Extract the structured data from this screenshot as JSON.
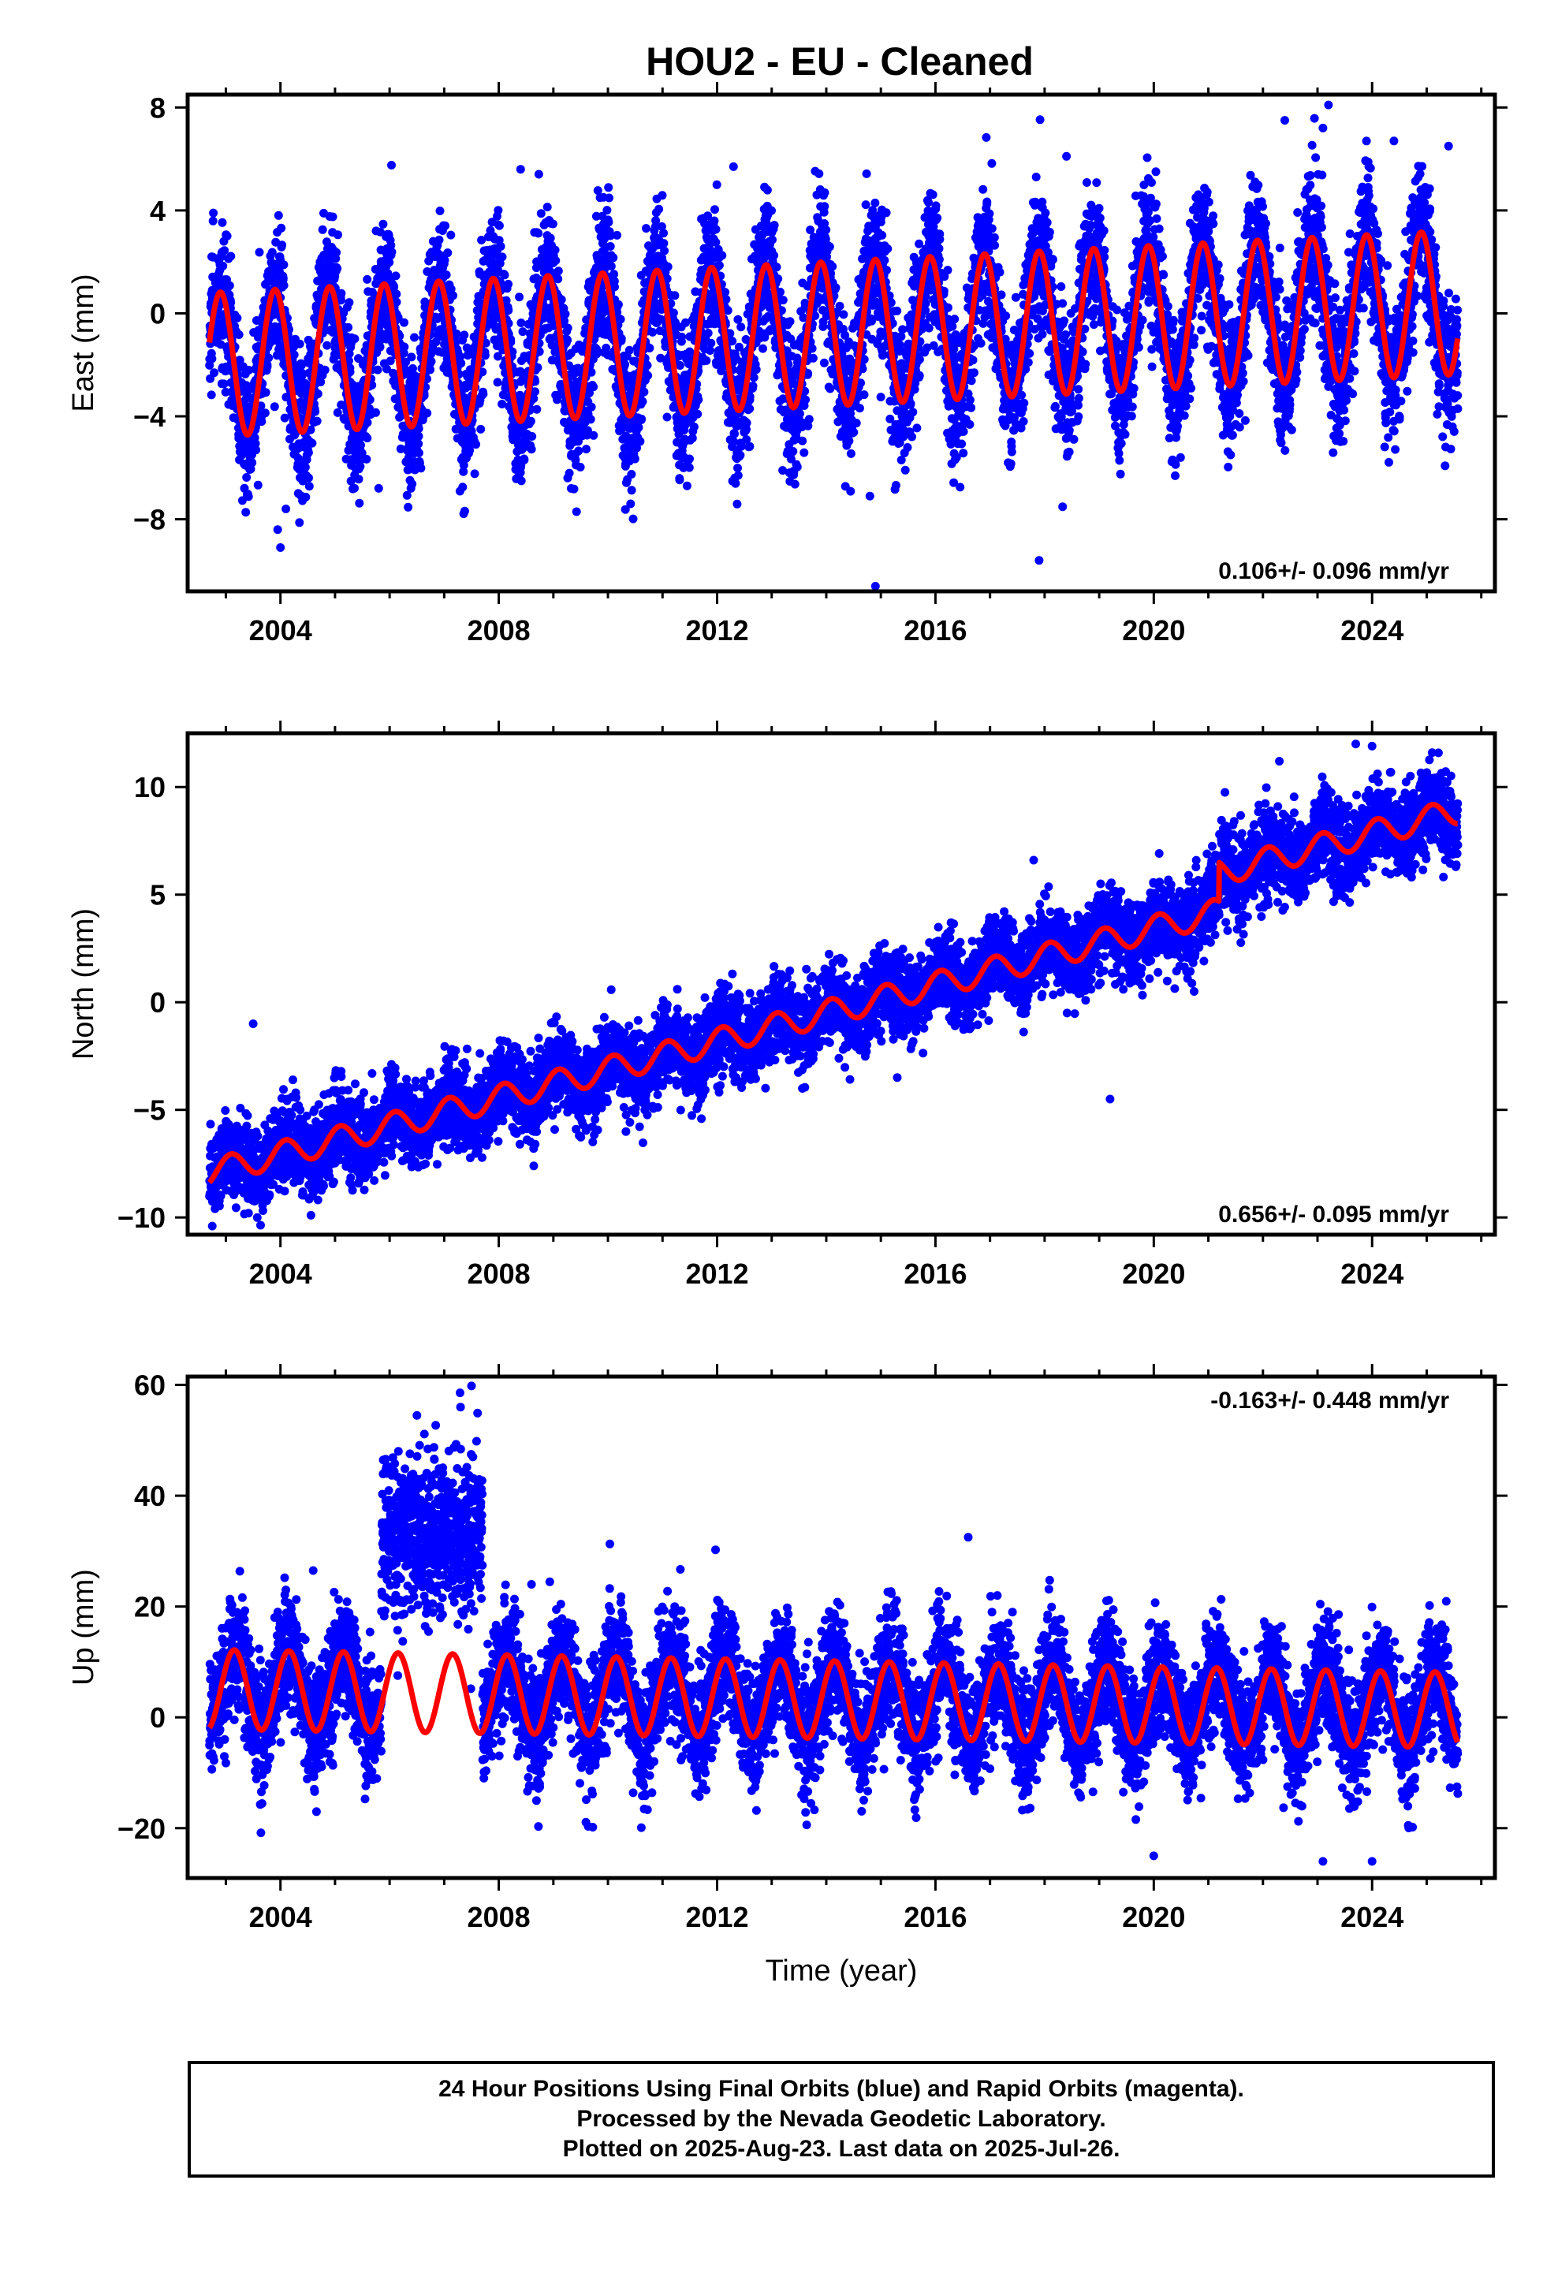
{
  "title": "HOU2  - EU - Cleaned",
  "colors": {
    "data": "#0000ff",
    "model": "#ff0000",
    "frame": "#000000"
  },
  "chart_data": [
    {
      "type": "scatter",
      "ylabel": "East (mm)",
      "xlabel": "",
      "xlim": [
        2002.3,
        2026.25
      ],
      "ylim": [
        -10.8,
        8.5
      ],
      "yticks": [
        8,
        4,
        0,
        -4,
        -8
      ],
      "ytick_labels": [
        "8",
        "4",
        "0",
        "−4",
        "−8"
      ],
      "xticks": [
        2004,
        2008,
        2012,
        2016,
        2020,
        2024
      ],
      "xtick_labels": [
        "2004",
        "2008",
        "2012",
        "2016",
        "2020",
        "2024"
      ],
      "rate_label": "0.106+/- 0.096 mm/yr",
      "rate_position": "bottom-right",
      "data_range": [
        2002.7,
        2025.57
      ],
      "model": {
        "offset": -0.8,
        "rate": 0.106,
        "ref_year": 2014.0,
        "amp_start": 2.8,
        "amp_end": 2.8,
        "phase": 2.2
      },
      "scatter_sigma": 1.3,
      "outliers": [
        [
          2004.0,
          -9.1
        ],
        [
          2003.95,
          -8.4
        ],
        [
          2004.1,
          -7.6
        ],
        [
          2014.8,
          -7.1
        ],
        [
          2014.9,
          -10.6
        ],
        [
          2017.9,
          -9.6
        ],
        [
          2008.4,
          5.6
        ],
        [
          2012.3,
          5.7
        ],
        [
          2018.4,
          6.1
        ],
        [
          2022.4,
          7.5
        ],
        [
          2023.2,
          8.1
        ],
        [
          2023.1,
          7.2
        ],
        [
          2024.4,
          6.7
        ],
        [
          2025.4,
          6.5
        ],
        [
          2013.2,
          -6.1
        ],
        [
          2005.8,
          -6.8
        ]
      ]
    },
    {
      "type": "scatter",
      "ylabel": "North (mm)",
      "xlabel": "",
      "xlim": [
        2002.3,
        2026.25
      ],
      "ylim": [
        -10.8,
        12.5
      ],
      "yticks": [
        10,
        5,
        0,
        -5,
        -10
      ],
      "ytick_labels": [
        "10",
        "5",
        "0",
        "−5",
        "−10"
      ],
      "xticks": [
        2004,
        2008,
        2012,
        2016,
        2020,
        2024
      ],
      "xtick_labels": [
        "2004",
        "2008",
        "2012",
        "2016",
        "2020",
        "2024"
      ],
      "rate_label": "0.656+/- 0.095 mm/yr",
      "rate_position": "bottom-right",
      "data_range": [
        2002.7,
        2025.57
      ],
      "model": {
        "offset": -0.5,
        "rate": 0.656,
        "ref_year": 2014.0,
        "amp_start": 0.6,
        "amp_end": 0.6,
        "phase": 1.0
      },
      "step": {
        "year": 2021.2,
        "size": 1.8
      },
      "scatter_sigma": 0.9,
      "outliers": [
        [
          2002.75,
          -10.4
        ],
        [
          2003.5,
          -1.0
        ],
        [
          2019.2,
          -4.5
        ],
        [
          2015.3,
          -3.5
        ],
        [
          2017.8,
          6.6
        ],
        [
          2022.3,
          11.2
        ],
        [
          2023.7,
          12.0
        ],
        [
          2025.1,
          11.6
        ],
        [
          2024.0,
          11.9
        ]
      ]
    },
    {
      "type": "scatter",
      "ylabel": "Up (mm)",
      "xlabel": "Time (year)",
      "xlim": [
        2002.3,
        2026.25
      ],
      "ylim": [
        -29.0,
        61.5
      ],
      "yticks": [
        60,
        40,
        20,
        0,
        -20
      ],
      "ytick_labels": [
        "60",
        "40",
        "20",
        "0",
        "−20"
      ],
      "xticks": [
        2004,
        2008,
        2012,
        2016,
        2020,
        2024
      ],
      "xtick_labels": [
        "2004",
        "2008",
        "2012",
        "2016",
        "2020",
        "2024"
      ],
      "rate_label": "-0.163+/- 0.448 mm/yr",
      "rate_position": "top-right",
      "data_range": [
        2002.7,
        2025.57
      ],
      "model": {
        "offset": 3.2,
        "rate": -0.163,
        "ref_year": 2014.0,
        "amp_start": 7.2,
        "amp_end": 6.8,
        "phase": 0.6
      },
      "anomaly": {
        "start": 2005.85,
        "end": 2007.7,
        "center": 33.0,
        "sigma": 7.0
      },
      "scatter_sigma": 5.0,
      "outliers": [
        [
          2016.6,
          32.5
        ],
        [
          2007.5,
          59.8
        ],
        [
          2007.3,
          56.0
        ],
        [
          2006.5,
          54.5
        ],
        [
          2008.6,
          24.0
        ],
        [
          2023.1,
          -26.0
        ],
        [
          2024.0,
          -26.0
        ],
        [
          2020.0,
          -25.0
        ],
        [
          2004.6,
          26.5
        ],
        [
          2004.1,
          23.0
        ]
      ]
    }
  ],
  "footer": {
    "line1": "24 Hour Positions Using Final Orbits (blue) and Rapid Orbits (magenta).",
    "line2": "Processed by the Nevada Geodetic Laboratory.",
    "line3": "Plotted on 2025-Aug-23. Last data on 2025-Jul-26."
  }
}
